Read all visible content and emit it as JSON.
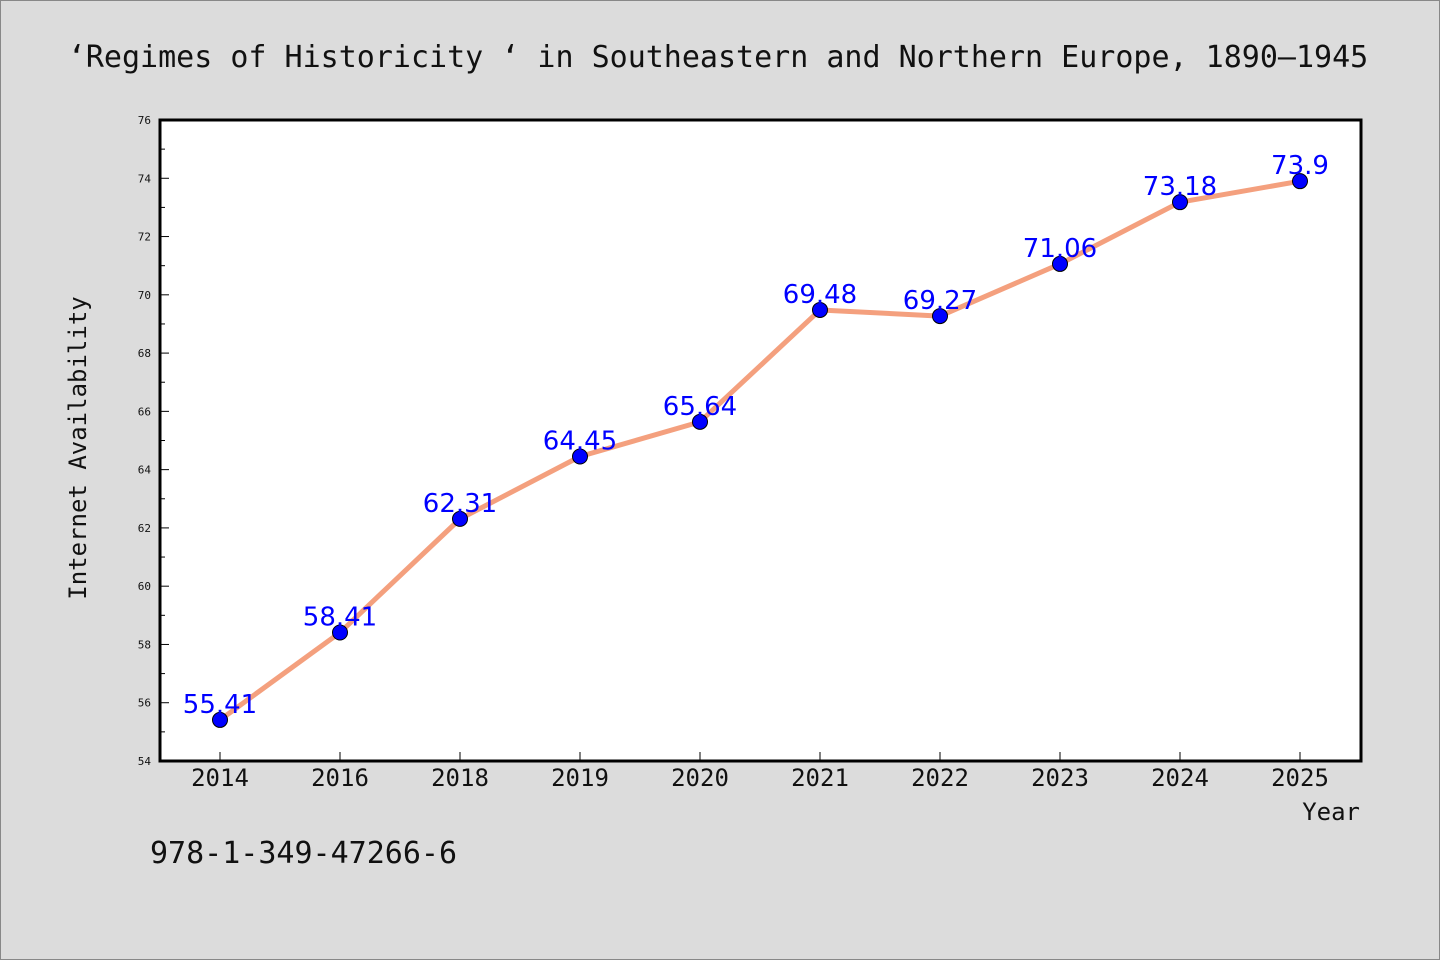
{
  "chart_data": {
    "type": "line",
    "title": "‘Regimes of Historicity ‘ in Southeastern and Northern Europe, 1890–1945",
    "xlabel": "Year",
    "ylabel": "Internet Availability",
    "categories": [
      "2014",
      "2016",
      "2018",
      "2019",
      "2020",
      "2021",
      "2022",
      "2023",
      "2024",
      "2025"
    ],
    "series": [
      {
        "values": [
          55.41,
          58.41,
          62.31,
          64.45,
          65.64,
          69.48,
          69.27,
          71.06,
          73.18,
          73.9
        ],
        "line_color": "#f4a07e",
        "marker_color": "#0000ff",
        "label_color": "#0000ff"
      }
    ],
    "ylim": [
      54,
      76
    ],
    "y_ticks": [
      54,
      56,
      58,
      60,
      62,
      64,
      66,
      68,
      70,
      72,
      74,
      76
    ],
    "grid": false,
    "legend": "none"
  },
  "footer": {
    "isbn": "978-1-349-47266-6"
  },
  "colors": {
    "background": "#dcdcdc",
    "plot_area": "#ffffff"
  }
}
